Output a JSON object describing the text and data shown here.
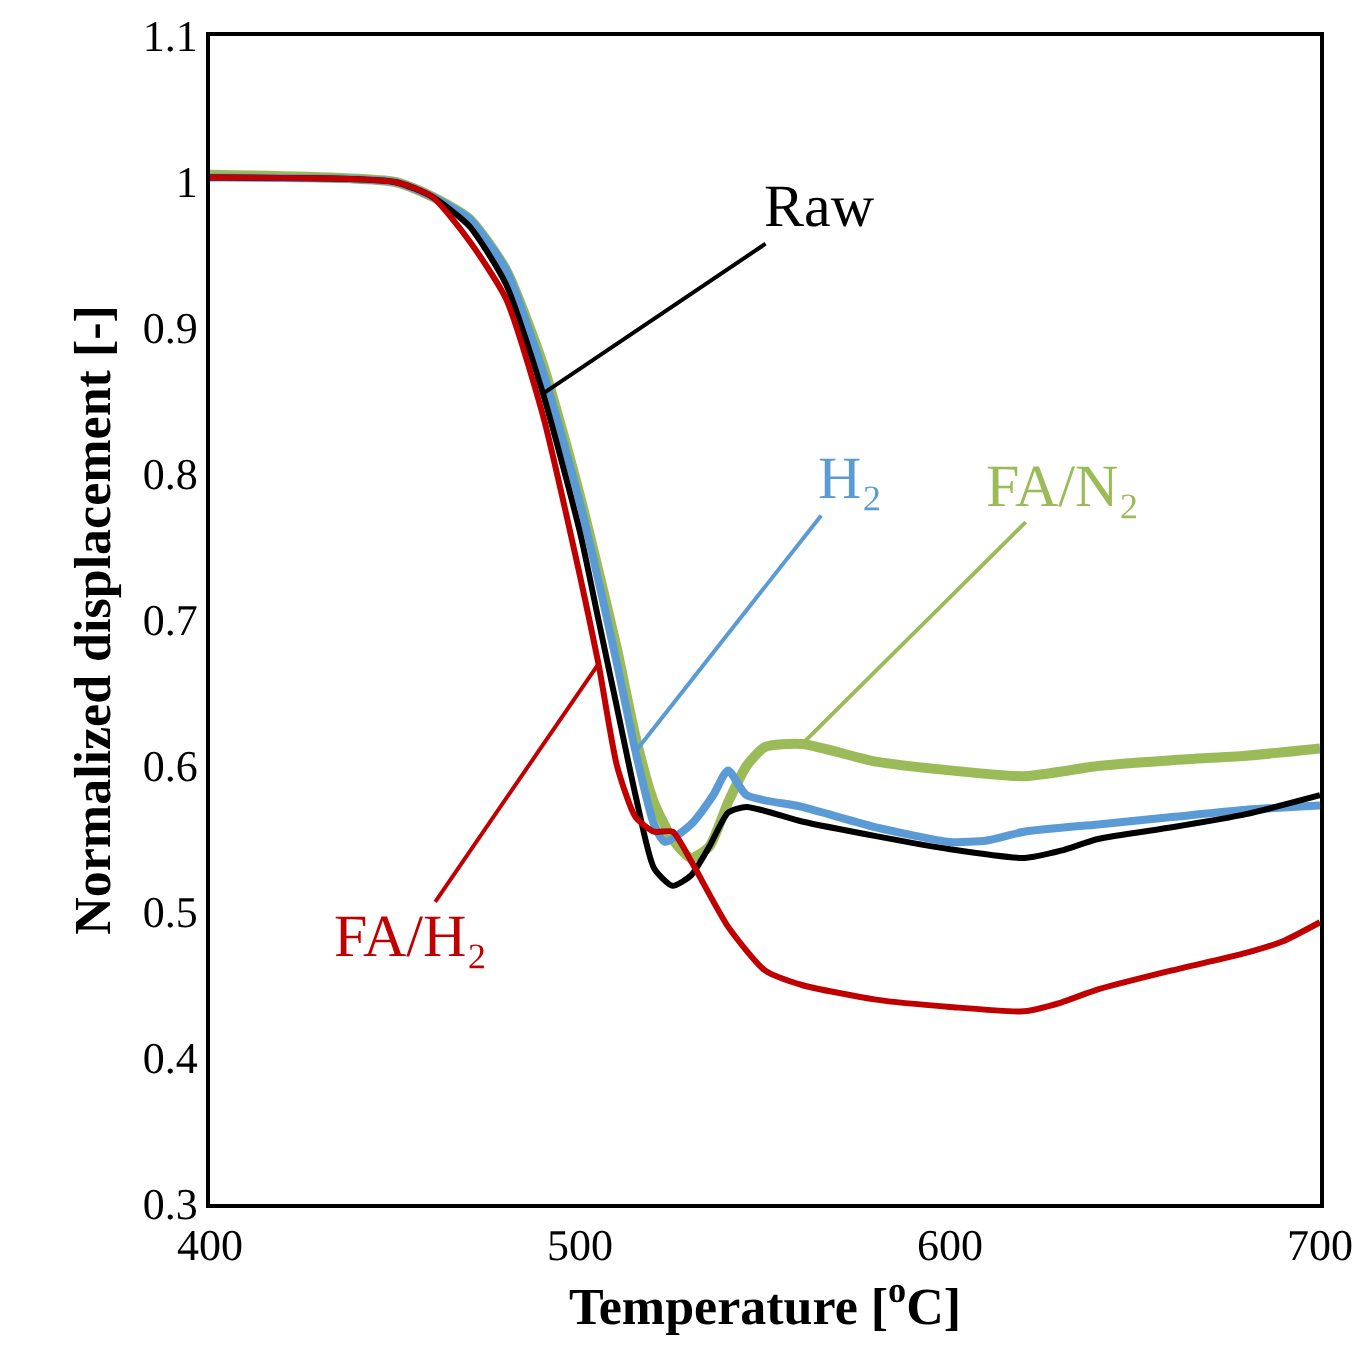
{
  "chart_data": {
    "type": "line",
    "xlabel": "Temperature [$^{o}$C]",
    "ylabel": "Normalized displacement [-]",
    "xlim": [
      400,
      700
    ],
    "xticks": [
      400,
      500,
      600,
      700
    ],
    "ylim": [
      0.3,
      1.1
    ],
    "yticks": [
      0.3,
      0.4,
      0.5,
      0.6,
      0.7,
      0.8,
      0.9,
      1,
      1.1
    ],
    "grid": false,
    "legend": false,
    "marker": "none",
    "line_style": "solid",
    "series": [
      {
        "name": "FA/N₂",
        "color": "#9bbb59",
        "x": [
          400,
          450,
          460,
          470,
          480,
          490,
          500,
          510,
          515,
          520,
          525,
          530,
          535,
          540,
          545,
          550,
          560,
          580,
          600,
          620,
          640,
          660,
          680,
          700
        ],
        "values": [
          1.005,
          1.0,
          0.99,
          0.975,
          0.94,
          0.875,
          0.785,
          0.68,
          0.62,
          0.575,
          0.55,
          0.537,
          0.545,
          0.575,
          0.6,
          0.613,
          0.615,
          0.603,
          0.597,
          0.593,
          0.6,
          0.604,
          0.607,
          0.612
        ]
      },
      {
        "name": "H₂",
        "color": "#5b9bd5",
        "x": [
          400,
          450,
          460,
          470,
          480,
          490,
          500,
          510,
          515,
          520,
          523,
          530,
          536,
          540,
          545,
          560,
          580,
          600,
          610,
          620,
          640,
          660,
          680,
          700
        ],
        "values": [
          1.003,
          1.0,
          0.99,
          0.975,
          0.94,
          0.87,
          0.78,
          0.67,
          0.61,
          0.56,
          0.548,
          0.56,
          0.58,
          0.597,
          0.58,
          0.572,
          0.558,
          0.548,
          0.549,
          0.555,
          0.56,
          0.565,
          0.57,
          0.573
        ]
      },
      {
        "name": "Raw",
        "color": "#000000",
        "x": [
          400,
          450,
          460,
          470,
          480,
          490,
          500,
          505,
          510,
          515,
          520,
          525,
          530,
          535,
          540,
          545,
          560,
          580,
          600,
          620,
          630,
          640,
          660,
          680,
          700
        ],
        "values": [
          1.003,
          1.0,
          0.99,
          0.97,
          0.93,
          0.855,
          0.76,
          0.7,
          0.64,
          0.58,
          0.53,
          0.518,
          0.525,
          0.545,
          0.568,
          0.572,
          0.562,
          0.552,
          0.543,
          0.537,
          0.542,
          0.55,
          0.558,
          0.567,
          0.58
        ]
      },
      {
        "name": "FA/H₂",
        "color": "#c00000",
        "x": [
          400,
          450,
          460,
          470,
          480,
          490,
          500,
          505,
          510,
          515,
          520,
          525,
          530,
          540,
          550,
          560,
          580,
          600,
          620,
          630,
          640,
          660,
          680,
          690,
          700
        ],
        "values": [
          1.003,
          1.0,
          0.99,
          0.96,
          0.92,
          0.84,
          0.73,
          0.67,
          0.6,
          0.565,
          0.555,
          0.555,
          0.535,
          0.49,
          0.46,
          0.45,
          0.44,
          0.435,
          0.432,
          0.438,
          0.447,
          0.46,
          0.472,
          0.48,
          0.493
        ]
      }
    ]
  }
}
